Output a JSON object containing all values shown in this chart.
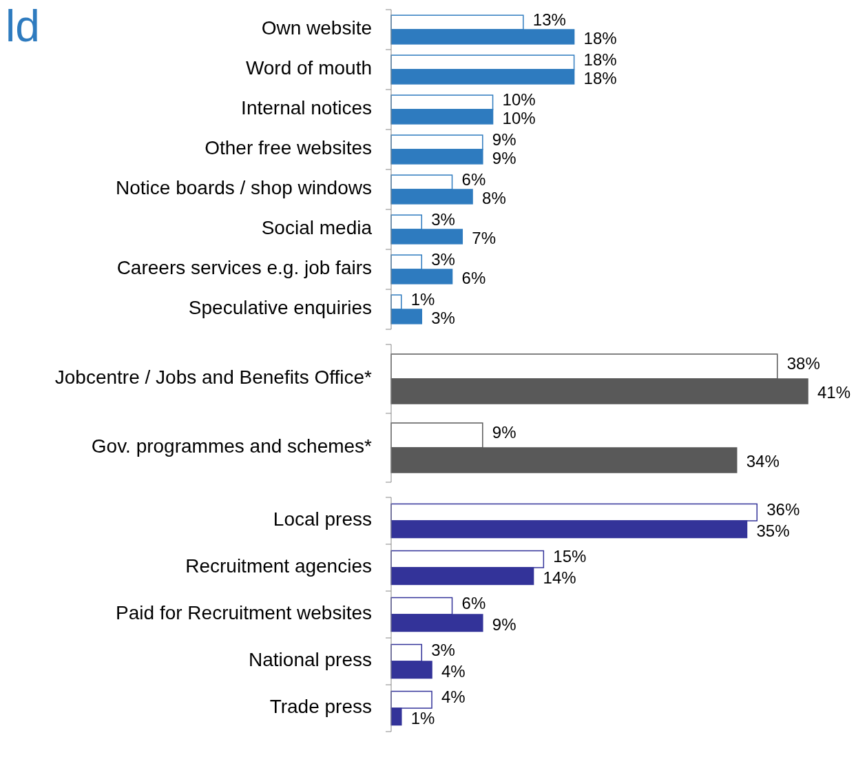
{
  "chart_data": [
    {
      "type": "bar",
      "title": "ld",
      "orientation": "horizontal",
      "categories": [
        "Own website",
        "Word of mouth",
        "Internal notices",
        "Other free websites",
        "Notice boards / shop windows",
        "Social media",
        "Careers services e.g. job fairs",
        "Speculative enquiries"
      ],
      "series": [
        {
          "color": "#ffffff",
          "values": [
            13,
            18,
            10,
            9,
            6,
            3,
            3,
            1
          ],
          "value_labels": [
            "13%",
            "18%",
            "10%",
            "9%",
            "6%",
            "3%",
            "3%",
            "1%"
          ]
        },
        {
          "color": "#2e7bbf",
          "values": [
            18,
            18,
            10,
            9,
            8,
            7,
            6,
            3
          ],
          "value_labels": [
            "18%",
            "18%",
            "10%",
            "9%",
            "8%",
            "7%",
            "6%",
            "3%"
          ]
        }
      ]
    },
    {
      "type": "bar",
      "orientation": "horizontal",
      "categories": [
        "Jobcentre / Jobs and Benefits Office*",
        "Gov. programmes and schemes*"
      ],
      "series": [
        {
          "color": "#ffffff",
          "values": [
            38,
            9
          ],
          "value_labels": [
            "38%",
            "9%"
          ]
        },
        {
          "color": "#595959",
          "values": [
            41,
            34
          ],
          "value_labels": [
            "41%",
            "34%"
          ]
        }
      ]
    },
    {
      "type": "bar",
      "orientation": "horizontal",
      "categories": [
        "Local press",
        "Recruitment agencies",
        "Paid for Recruitment websites",
        "National press",
        "Trade press"
      ],
      "series": [
        {
          "color": "#ffffff",
          "values": [
            36,
            15,
            6,
            3,
            4
          ],
          "value_labels": [
            "36%",
            "15%",
            "6%",
            "3%",
            "4%"
          ]
        },
        {
          "color": "#333399",
          "values": [
            35,
            14,
            9,
            4,
            1
          ],
          "value_labels": [
            "35%",
            "14%",
            "9%",
            "4%",
            "1%"
          ]
        }
      ]
    }
  ]
}
